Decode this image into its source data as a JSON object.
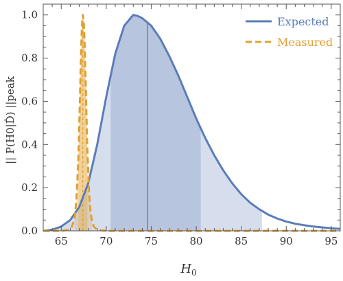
{
  "chart_data": {
    "type": "line",
    "xlabel": "H",
    "xlabel_sub": "0",
    "ylabel": "|| P(H0|D̂) ||peak",
    "xlim": [
      63,
      96
    ],
    "ylim": [
      0,
      1.05
    ],
    "x_ticks": [
      65,
      70,
      75,
      80,
      85,
      90,
      95
    ],
    "y_ticks": [
      "0.0",
      "0.2",
      "0.4",
      "0.6",
      "0.8",
      "1.0"
    ],
    "x_minor_step": 1,
    "y_minor_step": 0.05,
    "legend_position": "top-right",
    "series": [
      {
        "name": "Expected",
        "color": "#5B7DB8",
        "style": "solid",
        "peak_x": 73.2,
        "mean_x": 74.6,
        "inner_band": [
          70.5,
          80.5
        ],
        "outer_band": [
          63.0,
          87.3
        ],
        "x": [
          63,
          64,
          65,
          66,
          67,
          68,
          69,
          70,
          71,
          72,
          73,
          73.5,
          74,
          75,
          76,
          77,
          78,
          79,
          80,
          81,
          82,
          83,
          84,
          85,
          86,
          87,
          88,
          89,
          90,
          91,
          92,
          93,
          94,
          95,
          96
        ],
        "values": [
          0.0,
          0.005,
          0.02,
          0.05,
          0.11,
          0.22,
          0.4,
          0.62,
          0.82,
          0.95,
          1.0,
          0.995,
          0.985,
          0.95,
          0.89,
          0.81,
          0.72,
          0.62,
          0.52,
          0.43,
          0.35,
          0.28,
          0.22,
          0.17,
          0.13,
          0.1,
          0.075,
          0.057,
          0.043,
          0.033,
          0.026,
          0.02,
          0.016,
          0.012,
          0.009
        ]
      },
      {
        "name": "Measured",
        "color": "#E0A030",
        "style": "dashed",
        "peak_x": 67.4,
        "inner_band": [
          66.9,
          67.9
        ],
        "outer_band": [
          66.5,
          68.4
        ],
        "x": [
          63,
          65,
          65.8,
          66.2,
          66.5,
          66.7,
          66.9,
          67.0,
          67.1,
          67.2,
          67.3,
          67.4,
          67.5,
          67.6,
          67.7,
          67.8,
          67.9,
          68.1,
          68.3,
          68.6,
          69,
          70,
          75,
          80,
          85,
          90,
          96
        ],
        "values": [
          0.0,
          0.0,
          0.005,
          0.02,
          0.06,
          0.15,
          0.33,
          0.48,
          0.65,
          0.82,
          0.95,
          1.0,
          0.97,
          0.87,
          0.72,
          0.54,
          0.38,
          0.17,
          0.07,
          0.02,
          0.005,
          0.0,
          0.0,
          0.0,
          0.0,
          0.0,
          0.0
        ]
      }
    ]
  }
}
